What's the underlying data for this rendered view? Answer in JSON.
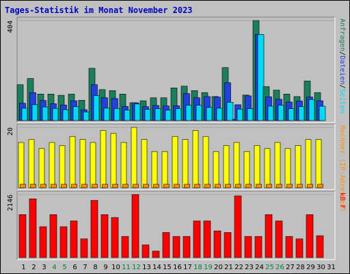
{
  "chart_data": {
    "type": "bar",
    "title": "Tages-Statistik im Monat November 2023",
    "x": [
      "1",
      "2",
      "3",
      "4",
      "5",
      "6",
      "7",
      "8",
      "9",
      "10",
      "11",
      "12",
      "13",
      "14",
      "15",
      "16",
      "17",
      "18",
      "19",
      "20",
      "21",
      "22",
      "23",
      "24",
      "25",
      "26",
      "27",
      "28",
      "29",
      "30",
      "31"
    ],
    "weekend_days": [
      "4",
      "5",
      "11",
      "12",
      "18",
      "19",
      "25",
      "26"
    ],
    "panels": [
      {
        "id": "requests",
        "max_label": "404",
        "ymax": 404,
        "right_label": {
          "parts": [
            "Anfragen",
            "/",
            "Dateien",
            "/",
            "Seiten"
          ]
        },
        "series": [
          {
            "name": "Anfragen",
            "color": "#1a7f5a",
            "values": [
              145,
              170,
              107,
              107,
              102,
              107,
              82,
              211,
              125,
              121,
              107,
              72,
              80,
              92,
              92,
              132,
              139,
              121,
              113,
              97,
              214,
              5,
              103,
              404,
              137,
              123,
              107,
              97,
              160,
              113,
              0
            ]
          },
          {
            "name": "Dateien",
            "color": "#2040e0",
            "values": [
              70,
              113,
              81,
              68,
              63,
              80,
              44,
              145,
              92,
              89,
              57,
              72,
              56,
              61,
              59,
              60,
              109,
              92,
              97,
              95,
              153,
              64,
              100,
              348,
              96,
              86,
              75,
              79,
              95,
              80,
              0
            ]
          },
          {
            "name": "Seiten",
            "color": "#00d8f8",
            "values": [
              50,
              64,
              55,
              49,
              44,
              56,
              35,
              101,
              50,
              49,
              42,
              67,
              45,
              48,
              42,
              48,
              62,
              62,
              53,
              50,
              74,
              46,
              48,
              348,
              58,
              62,
              48,
              56,
              85,
              58,
              0
            ]
          }
        ]
      },
      {
        "id": "hosts",
        "max_label": "20",
        "ymax": 20,
        "right_label": {
          "parts": [
            "Rechner (IP-Adressen)"
          ]
        },
        "series": [
          {
            "name": "Rechner",
            "color": "#ffff00",
            "values": [
              15,
              16,
              13,
              15,
              14,
              17,
              16,
              15,
              19,
              18,
              15,
              20,
              16,
              12,
              12,
              17,
              16,
              19,
              17,
              12,
              14,
              15,
              12,
              14,
              13,
              15,
              13,
              14,
              16,
              16,
              0
            ]
          },
          {
            "name": "",
            "color": "#ff9000",
            "values": [
              1,
              1,
              1,
              1,
              1,
              1,
              1,
              1,
              1,
              1,
              1,
              1,
              1,
              1,
              1,
              1,
              1,
              1,
              1,
              1,
              1,
              1,
              1,
              1,
              1,
              1,
              1,
              1,
              1,
              1,
              0
            ]
          }
        ]
      },
      {
        "id": "kbytes",
        "max_label": "2146",
        "ymax": 2146,
        "right_label": {
          "parts": [
            "kB F"
          ]
        },
        "series": [
          {
            "name": "kB F",
            "color": "#ff0000",
            "values": [
              1462,
              2000,
              1050,
              1462,
              1050,
              1247,
              636,
              1946,
              1462,
              1361,
              719,
              2146,
              431,
              219,
              853,
              719,
              719,
              1247,
              1247,
              907,
              853,
              2100,
              719,
              719,
              1462,
              1247,
              719,
              636,
              1462,
              744,
              0
            ]
          }
        ]
      }
    ]
  },
  "colors": {
    "background": "#c0c0c0",
    "title": "#0000c0",
    "weekday_label": "#000000",
    "weekend_label": "#008040",
    "bar_outline": "#000000"
  }
}
